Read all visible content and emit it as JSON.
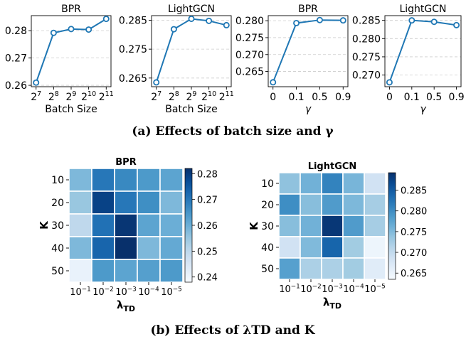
{
  "captions": {
    "a": "(a) Effects of batch size and γ",
    "b": "(b) Effects of λTD and K"
  },
  "line_color": "#1f77b4",
  "chart_data": [
    {
      "type": "line",
      "title": "BPR",
      "xlabel": "Batch Size",
      "ylabel": "",
      "x": [
        "2^7",
        "2^8",
        "2^9",
        "2^10",
        "2^11"
      ],
      "values": [
        0.261,
        0.2792,
        0.2806,
        0.2804,
        0.2843
      ],
      "ylim": [
        0.2595,
        0.2855
      ],
      "yticks": [
        "0.26",
        "0.27",
        "0.28"
      ],
      "ytick_values": [
        0.26,
        0.27,
        0.28
      ],
      "grid": true
    },
    {
      "type": "line",
      "title": "LightGCN",
      "xlabel": "Batch Size",
      "ylabel": "",
      "x": [
        "2^7",
        "2^8",
        "2^9",
        "2^10",
        "2^11"
      ],
      "values": [
        0.2635,
        0.2819,
        0.2855,
        0.2848,
        0.2833
      ],
      "ylim": [
        0.262,
        0.2866
      ],
      "yticks": [
        "0.265",
        "0.275",
        "0.285"
      ],
      "ytick_values": [
        0.265,
        0.275,
        0.285
      ],
      "grid": true
    },
    {
      "type": "line",
      "title": "BPR",
      "xlabel": "γ",
      "ylabel": "",
      "x": [
        "0",
        "0.1",
        "0.5",
        "0.9"
      ],
      "values": [
        0.2618,
        0.2793,
        0.2802,
        0.2801
      ],
      "ylim": [
        0.2605,
        0.2815
      ],
      "yticks": [
        "0.265",
        "0.270",
        "0.275",
        "0.280"
      ],
      "ytick_values": [
        0.265,
        0.27,
        0.275,
        0.28
      ],
      "grid": true
    },
    {
      "type": "line",
      "title": "LightGCN",
      "xlabel": "γ",
      "ylabel": "",
      "x": [
        "0",
        "0.1",
        "0.5",
        "0.9"
      ],
      "values": [
        0.268,
        0.285,
        0.2846,
        0.2837
      ],
      "ylim": [
        0.2668,
        0.2863
      ],
      "yticks": [
        "0.270",
        "0.275",
        "0.280",
        "0.285"
      ],
      "ytick_values": [
        0.27,
        0.275,
        0.28,
        0.285
      ],
      "grid": true
    },
    {
      "type": "heatmap",
      "title": "BPR",
      "xlabel": "λTD",
      "ylabel": "K",
      "x": [
        "10^-1",
        "10^-2",
        "10^-3",
        "10^-4",
        "10^-5"
      ],
      "y": [
        "10",
        "20",
        "30",
        "40",
        "50"
      ],
      "values": [
        [
          0.258,
          0.27,
          0.267,
          0.264,
          0.262
        ],
        [
          0.255,
          0.279,
          0.27,
          0.266,
          0.258
        ],
        [
          0.25,
          0.271,
          0.281,
          0.262,
          0.26
        ],
        [
          0.258,
          0.273,
          0.282,
          0.258,
          0.261
        ],
        [
          0.241,
          0.264,
          0.262,
          0.263,
          0.264
        ]
      ],
      "colorbar_range": [
        0.238,
        0.282
      ],
      "colorbar_ticks": [
        "0.24",
        "0.25",
        "0.26",
        "0.27",
        "0.28"
      ],
      "colorbar_tick_values": [
        0.24,
        0.25,
        0.26,
        0.27,
        0.28
      ],
      "colormap": "Blues"
    },
    {
      "type": "heatmap",
      "title": "LightGCN",
      "xlabel": "λTD",
      "ylabel": "K",
      "x": [
        "10^-1",
        "10^-2",
        "10^-3",
        "10^-4",
        "10^-5"
      ],
      "y": [
        "10",
        "20",
        "30",
        "40",
        "50"
      ],
      "values": [
        [
          0.274,
          0.276,
          0.281,
          0.2755,
          0.2685
        ],
        [
          0.28,
          0.2745,
          0.2785,
          0.2752,
          0.2725
        ],
        [
          0.2745,
          0.276,
          0.2885,
          0.2785,
          0.2725
        ],
        [
          0.2685,
          0.275,
          0.284,
          0.2728,
          0.2648
        ],
        [
          0.278,
          0.272,
          0.272,
          0.2728,
          0.2665
        ]
      ],
      "colorbar_range": [
        0.2635,
        0.2892
      ],
      "colorbar_ticks": [
        "0.265",
        "0.270",
        "0.275",
        "0.280",
        "0.285"
      ],
      "colorbar_tick_values": [
        0.265,
        0.27,
        0.275,
        0.28,
        0.285
      ],
      "colormap": "Blues"
    }
  ]
}
